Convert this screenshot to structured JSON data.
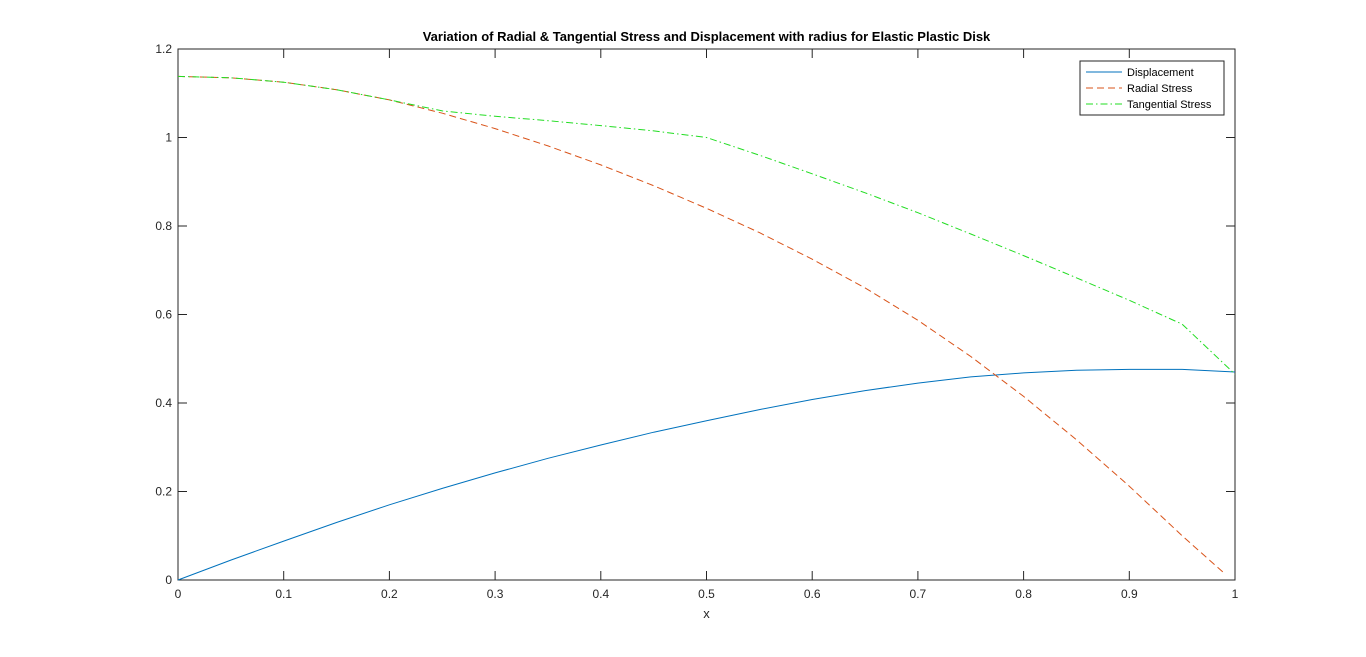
{
  "chart_data": {
    "type": "line",
    "title": "Variation of Radial & Tangential Stress and Displacement with radius for Elastic Plastic Disk",
    "xlabel": "x",
    "ylabel": "",
    "xlim": [
      0,
      1
    ],
    "ylim": [
      0,
      1.2
    ],
    "xticks": [
      0,
      0.1,
      0.2,
      0.3,
      0.4,
      0.5,
      0.6,
      0.7,
      0.8,
      0.9,
      1
    ],
    "xtick_labels": [
      "0",
      "0.1",
      "0.2",
      "0.3",
      "0.4",
      "0.5",
      "0.6",
      "0.7",
      "0.8",
      "0.9",
      "1"
    ],
    "yticks": [
      0,
      0.2,
      0.4,
      0.6,
      0.8,
      1.0,
      1.2
    ],
    "ytick_labels": [
      "0",
      "0.2",
      "0.4",
      "0.6",
      "0.8",
      "1",
      "1.2"
    ],
    "grid": false,
    "legend_position": "top-right",
    "series": [
      {
        "name": "Displacement",
        "color": "#0072BD",
        "style": "solid",
        "x": [
          0,
          0.05,
          0.1,
          0.15,
          0.2,
          0.25,
          0.3,
          0.35,
          0.4,
          0.45,
          0.5,
          0.55,
          0.6,
          0.65,
          0.7,
          0.75,
          0.8,
          0.85,
          0.9,
          0.95,
          1.0
        ],
        "y": [
          0,
          0.045,
          0.088,
          0.13,
          0.17,
          0.207,
          0.242,
          0.275,
          0.305,
          0.334,
          0.36,
          0.385,
          0.408,
          0.428,
          0.445,
          0.459,
          0.468,
          0.474,
          0.476,
          0.476,
          0.47
        ]
      },
      {
        "name": "Radial Stress",
        "color": "#D95319",
        "style": "dashed",
        "x": [
          0,
          0.05,
          0.1,
          0.15,
          0.2,
          0.25,
          0.3,
          0.35,
          0.4,
          0.45,
          0.5,
          0.55,
          0.6,
          0.65,
          0.7,
          0.75,
          0.8,
          0.85,
          0.9,
          0.95,
          0.99
        ],
        "y": [
          1.138,
          1.135,
          1.125,
          1.108,
          1.085,
          1.055,
          1.02,
          0.981,
          0.938,
          0.891,
          0.84,
          0.785,
          0.725,
          0.66,
          0.587,
          0.505,
          0.415,
          0.317,
          0.212,
          0.1,
          0.015
        ]
      },
      {
        "name": "Tangential Stress",
        "color": "#22DD22",
        "style": "dashdot",
        "x": [
          0,
          0.05,
          0.1,
          0.15,
          0.2,
          0.25,
          0.3,
          0.35,
          0.4,
          0.45,
          0.5,
          0.55,
          0.6,
          0.65,
          0.7,
          0.75,
          0.8,
          0.85,
          0.9,
          0.95,
          1.0
        ],
        "y": [
          1.138,
          1.135,
          1.125,
          1.108,
          1.085,
          1.06,
          1.048,
          1.038,
          1.027,
          1.015,
          1.0,
          0.96,
          0.918,
          0.875,
          0.83,
          0.782,
          0.733,
          0.683,
          0.632,
          0.578,
          0.465
        ]
      }
    ]
  }
}
